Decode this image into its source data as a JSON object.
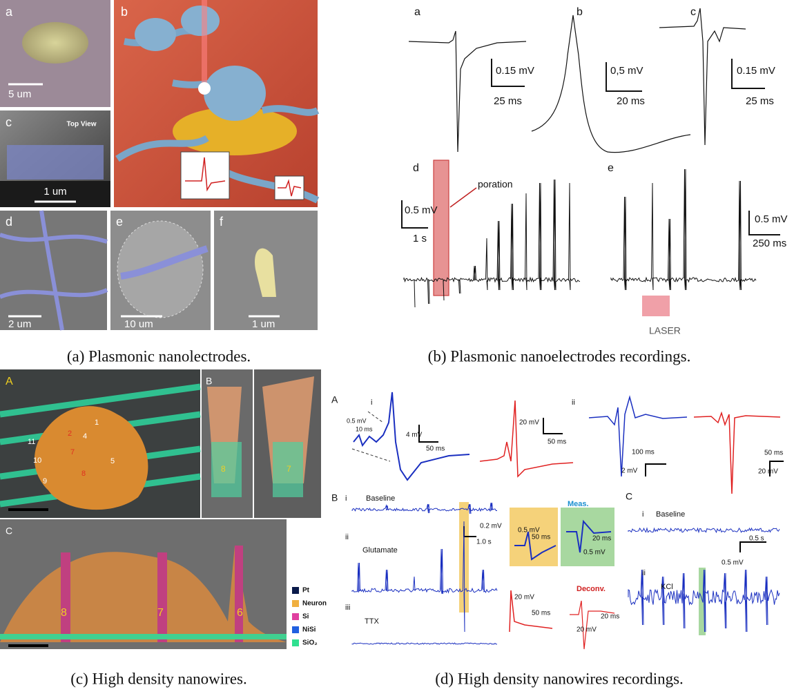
{
  "figure": {
    "panels": [
      {
        "caption": "(a) Plasmonic nanolectrodes.",
        "labels": [
          "a",
          "5 um",
          "b",
          "c",
          "Top View",
          "1 um",
          "d",
          "2 um",
          "e",
          "10 um",
          "f",
          "1 um"
        ]
      },
      {
        "caption": "(b) Plasmonic nanoelectrodes recordings.",
        "labels": [
          "a",
          "0.15 mV",
          "25 ms",
          "b",
          "0,5 mV",
          "20 ms",
          "c",
          "0.15 mV",
          "25 ms",
          "d",
          "poration",
          "0.5 mV",
          "1 s",
          "e",
          "0.5 mV",
          "250 ms",
          "LASER"
        ]
      },
      {
        "caption": "(c) High density nanowires.",
        "labels": [
          "A",
          "1",
          "2",
          "4",
          "5",
          "7",
          "8",
          "9",
          "10",
          "11",
          "B",
          "8",
          "7",
          "C",
          "8",
          "7",
          "6",
          "Pt",
          "Neuron",
          "Si",
          "NiSi",
          "SiO₂"
        ]
      },
      {
        "caption": "(d) High density nanowires recordings.",
        "labels": [
          "A",
          "i",
          "0.5 mV",
          "10 ms",
          "4 mV",
          "50 ms",
          "20 mV",
          "50 ms",
          "ii",
          "100 ms",
          "2 mV",
          "50 ms",
          "20 mV",
          "B",
          "i",
          "Baseline",
          "ii",
          "Glutamate",
          "0.2 mV",
          "1.0 s",
          "iii",
          "TTX",
          "Meas.",
          "0.5 mV",
          "50 ms",
          "20 ms",
          "0.5 mV",
          "Deconv.",
          "20 mV",
          "50 ms",
          "20 ms",
          "20 mV",
          "C",
          "i",
          "Baseline",
          "0.5 s",
          "0.5 mV",
          "ii",
          "KCl"
        ]
      }
    ]
  }
}
